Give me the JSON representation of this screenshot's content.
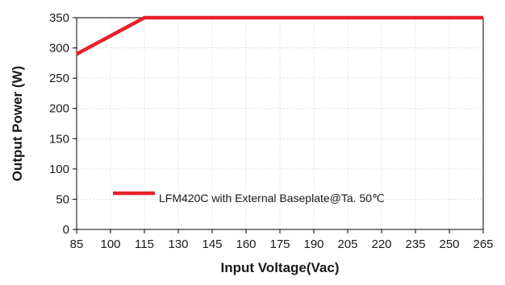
{
  "chart_data": {
    "type": "line",
    "title": "",
    "xlabel": "Input Voltage(Vac)",
    "ylabel": "Output Power (W)",
    "xlim": [
      85,
      265
    ],
    "ylim": [
      0,
      350
    ],
    "x_ticks": [
      85,
      100,
      115,
      130,
      145,
      160,
      175,
      190,
      205,
      220,
      235,
      250,
      265
    ],
    "y_ticks": [
      0,
      50,
      100,
      150,
      200,
      250,
      300,
      350
    ],
    "grid": true,
    "legend_position": "lower-left",
    "series": [
      {
        "name": "LFM420C with External Baseplate@Ta. 50℃",
        "color": "#e8212b",
        "x": [
          85,
          115,
          265
        ],
        "y": [
          290,
          350,
          350
        ]
      }
    ]
  }
}
